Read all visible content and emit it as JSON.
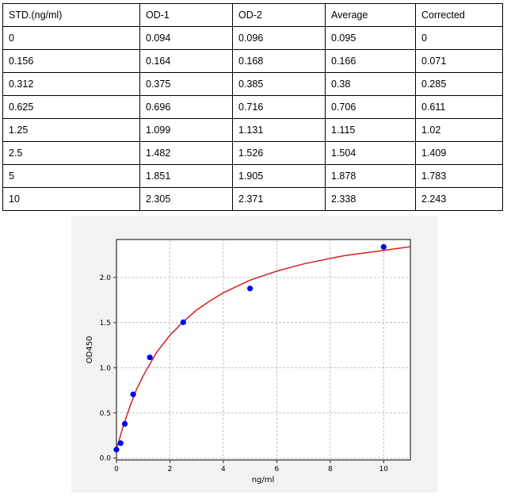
{
  "table": {
    "headers": [
      "STD.(ng/ml)",
      "OD-1",
      "OD-2",
      "Average",
      "Corrected"
    ],
    "rows": [
      [
        "0",
        "0.094",
        "0.096",
        "0.095",
        "0"
      ],
      [
        "0.156",
        "0.164",
        "0.168",
        "0.166",
        "0.071"
      ],
      [
        "0.312",
        "0.375",
        "0.385",
        "0.38",
        "0.285"
      ],
      [
        "0.625",
        "0.696",
        "0.716",
        "0.706",
        "0.611"
      ],
      [
        "1.25",
        "1.099",
        "1.131",
        "1.115",
        "1.02"
      ],
      [
        "2.5",
        "1.482",
        "1.526",
        "1.504",
        "1.409"
      ],
      [
        "5",
        "1.851",
        "1.905",
        "1.878",
        "1.783"
      ],
      [
        "10",
        "2.305",
        "2.371",
        "2.338",
        "2.243"
      ]
    ]
  },
  "chart_data": {
    "type": "scatter",
    "xlabel": "ng/ml",
    "ylabel": "OD450",
    "xlim": [
      0,
      11
    ],
    "ylim": [
      -0.02,
      2.42
    ],
    "xticks": [
      0,
      2,
      4,
      6,
      8,
      10
    ],
    "yticks": [
      0.0,
      0.5,
      1.0,
      1.5,
      2.0
    ],
    "xtick_labels": [
      "0",
      "2",
      "4",
      "6",
      "8",
      "10"
    ],
    "ytick_labels": [
      "0.0",
      "0.5",
      "1.0",
      "1.5",
      "2.0"
    ],
    "grid": true,
    "points": {
      "x": [
        0,
        0.156,
        0.312,
        0.625,
        1.25,
        2.5,
        5,
        10
      ],
      "y": [
        0.095,
        0.166,
        0.38,
        0.706,
        1.115,
        1.504,
        1.878,
        2.338
      ],
      "color": "#0000ff"
    },
    "fit_curve": {
      "color": "#d62020",
      "x": [
        0,
        0.25,
        0.5,
        0.75,
        1,
        1.5,
        2,
        2.5,
        3,
        3.5,
        4,
        4.5,
        5,
        5.5,
        6,
        6.5,
        7,
        7.5,
        8,
        8.5,
        9,
        9.5,
        10,
        10.5,
        11
      ],
      "y": [
        0.1,
        0.35,
        0.57,
        0.76,
        0.91,
        1.17,
        1.36,
        1.51,
        1.64,
        1.74,
        1.83,
        1.9,
        1.97,
        2.02,
        2.07,
        2.11,
        2.15,
        2.18,
        2.21,
        2.24,
        2.26,
        2.28,
        2.3,
        2.32,
        2.34
      ]
    }
  }
}
